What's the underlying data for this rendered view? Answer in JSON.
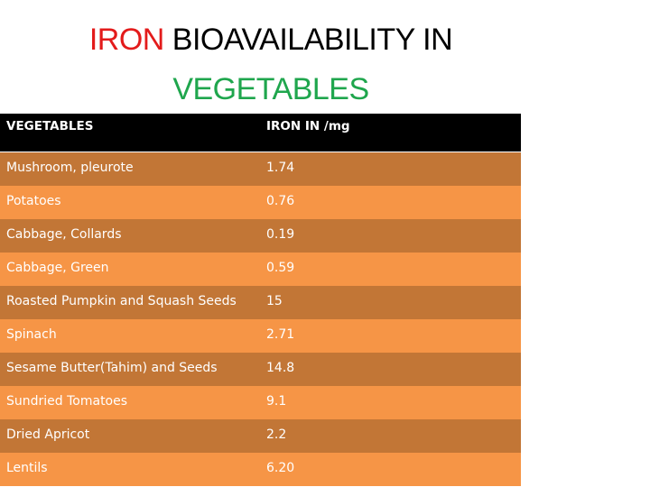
{
  "title": {
    "line1_red": "IRON",
    "line1_rest": " BIOAVAILABILITY IN",
    "line2_green": "VEGETABLES",
    "colors": {
      "red": "#e31b1b",
      "black": "#000000",
      "green": "#1fa64d"
    }
  },
  "table": {
    "headers": [
      "VEGETABLES",
      "IRON IN /mg"
    ],
    "rows": [
      {
        "vegetable": "Mushroom, pleurote",
        "iron": "1.74"
      },
      {
        "vegetable": "Potatoes",
        "iron": "0.76"
      },
      {
        "vegetable": "Cabbage, Collards",
        "iron": "0.19"
      },
      {
        "vegetable": "Cabbage, Green",
        "iron": "0.59"
      },
      {
        "vegetable": "Roasted Pumpkin and Squash Seeds",
        "iron": "15"
      },
      {
        "vegetable": "Spinach",
        "iron": "2.71"
      },
      {
        "vegetable": "Sesame Butter(Tahim) and Seeds",
        "iron": "14.8"
      },
      {
        "vegetable": "Sundried Tomatoes",
        "iron": "9.1"
      },
      {
        "vegetable": "Dried Apricot",
        "iron": "2.2"
      },
      {
        "vegetable": "Lentils",
        "iron": "6.20"
      }
    ],
    "colors": {
      "header_bg": "#000000",
      "row_dark": "#c27636",
      "row_light": "#f69546",
      "text": "#ffffff"
    }
  }
}
